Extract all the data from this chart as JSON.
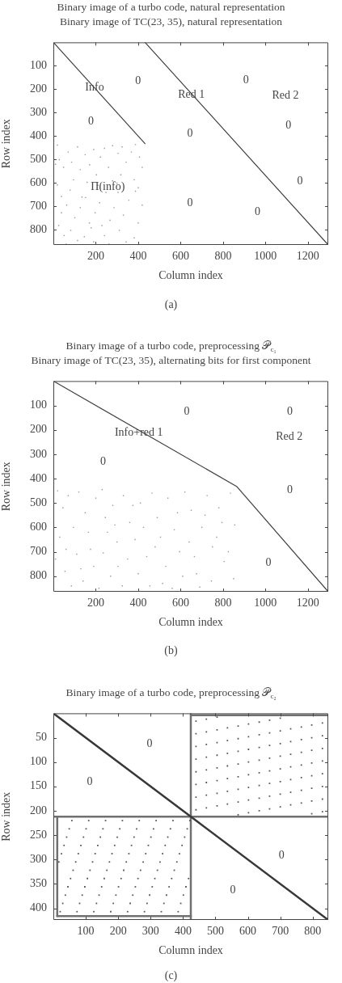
{
  "chart_data": [
    {
      "type": "scatter",
      "title": "Binary image of a turbo code, natural representation",
      "subtitle": "Binary image of TC(23, 35), natural representation",
      "xlabel": "Column index",
      "ylabel": "Row index",
      "xlim": [
        0,
        1296
      ],
      "ylim": [
        864,
        0
      ],
      "xticks": [
        200,
        400,
        600,
        800,
        1000,
        1200
      ],
      "yticks": [
        100,
        200,
        300,
        400,
        500,
        600,
        700,
        800
      ],
      "series": [
        {
          "type": "line",
          "x": [
            0,
            432
          ],
          "values": [
            0,
            432
          ],
          "color": "#404040",
          "marker": "none"
        },
        {
          "type": "line",
          "x": [
            432,
            1296
          ],
          "values": [
            0,
            864
          ],
          "color": "#404040",
          "marker": "none"
        },
        {
          "color": "#9a9a9a",
          "marker": "square",
          "x": [
            19,
            28,
            48,
            70,
            86,
            114,
            127,
            150,
            171,
            190,
            203,
            222,
            241,
            260,
            279,
            305,
            324,
            343,
            368,
            387,
            406,
            419,
            19,
            38,
            63,
            79,
            101,
            127,
            152,
            178,
            197,
            218,
            241,
            267,
            286,
            311,
            330,
            356,
            381,
            400,
            419,
            25,
            51,
            82,
            114,
            146,
            190,
            229,
            343,
            387,
            305,
            95,
            381,
            279,
            159,
            38,
            318,
            248,
            60,
            210,
            400,
            10,
            135,
            262,
            300,
            170
          ],
          "values": [
            438,
            500,
            533,
            468,
            511,
            446,
            543,
            479,
            522,
            457,
            565,
            489,
            452,
            533,
            441,
            473,
            446,
            511,
            468,
            436,
            489,
            533,
            608,
            657,
            694,
            630,
            748,
            705,
            662,
            791,
            727,
            684,
            824,
            759,
            705,
            802,
            737,
            673,
            834,
            770,
            694,
            781,
            824,
            802,
            845,
            829,
            851,
            781,
            851,
            635,
            640,
            586,
            586,
            591,
            597,
            727,
            565,
            640,
            860,
            610,
            620,
            520,
            660,
            860,
            600,
            770
          ]
        }
      ],
      "annotations": [
        "Info",
        "0",
        "0",
        "Red 1",
        "Red 2",
        "0",
        "0",
        "0",
        "Π(info)",
        "0",
        "0",
        "0",
        "(a)"
      ]
    },
    {
      "type": "scatter",
      "title": "Binary image of a turbo code, preprocessing 𝒫$_{c₁}$",
      "subtitle": "Binary image of TC(23, 35), alternating bits for first component",
      "xlabel": "Column index",
      "ylabel": "Row index",
      "xlim": [
        0,
        1296
      ],
      "ylim": [
        864,
        0
      ],
      "xticks": [
        200,
        400,
        600,
        800,
        1000,
        1200
      ],
      "yticks": [
        100,
        200,
        300,
        400,
        500,
        600,
        700,
        800
      ],
      "series": [
        {
          "type": "line",
          "x": [
            0,
            864,
            1296
          ],
          "values": [
            0,
            432,
            864
          ],
          "color": "#404040",
          "marker": "none"
        },
        {
          "color": "#9a9a9a",
          "marker": "square",
          "x": [
            20,
            45,
            70,
            95,
            120,
            150,
            175,
            200,
            230,
            255,
            280,
            305,
            330,
            360,
            385,
            410,
            440,
            465,
            490,
            515,
            540,
            570,
            595,
            620,
            650,
            675,
            700,
            725,
            750,
            780,
            805,
            835,
            855,
            30,
            55,
            85,
            110,
            140,
            165,
            190,
            215,
            245,
            270,
            300,
            325,
            350,
            375,
            400,
            425,
            455,
            480,
            505,
            530,
            560,
            585,
            610,
            640,
            665,
            690,
            715,
            745,
            770,
            795,
            825,
            850,
            10,
            60,
            130,
            235,
            290
          ],
          "values": [
            450,
            520,
            470,
            600,
            455,
            540,
            690,
            480,
            445,
            620,
            510,
            760,
            470,
            580,
            650,
            500,
            720,
            460,
            560,
            830,
            480,
            610,
            700,
            455,
            530,
            790,
            600,
            470,
            680,
            520,
            740,
            460,
            590,
            640,
            780,
            840,
            710,
            820,
            620,
            760,
            850,
            560,
            800,
            660,
            840,
            730,
            510,
            790,
            600,
            840,
            680,
            640,
            760,
            850,
            540,
            800,
            660,
            720,
            845,
            550,
            820,
            640,
            580,
            700,
            810,
            730,
            690,
            770,
            705,
            590
          ]
        }
      ],
      "annotations": [
        "0",
        "0",
        "Info+red 1",
        "Red 2",
        "0",
        "0",
        "0",
        "(b)"
      ]
    },
    {
      "type": "scatter",
      "title": "Binary image of a turbo code, preprocessing 𝒫$_{c₂}$",
      "xlabel": "Column index",
      "ylabel": "Row index",
      "xlim": [
        0,
        848
      ],
      "ylim": [
        424,
        0
      ],
      "xticks": [
        100,
        200,
        300,
        400,
        500,
        600,
        700,
        800
      ],
      "yticks": [
        50,
        100,
        150,
        200,
        250,
        300,
        350,
        400
      ],
      "series": [
        {
          "type": "line",
          "x": [
            0,
            848
          ],
          "values": [
            0,
            424
          ],
          "color": "#383838",
          "marker": "none"
        },
        {
          "type": "line",
          "x": [
            424,
            848
          ],
          "values": [
            4,
            4
          ],
          "color": "#707070",
          "marker": "none"
        },
        {
          "type": "line",
          "x": [
            12,
            424
          ],
          "values": [
            416,
            416
          ],
          "color": "#707070",
          "marker": "none"
        },
        {
          "type": "line",
          "x": [
            12,
            12
          ],
          "values": [
            212,
            416
          ],
          "color": "#707070",
          "marker": "none"
        },
        {
          "color": "#555555",
          "marker": "square",
          "x": [
            440,
            472,
            505,
            440,
            472,
            505,
            537,
            570,
            602,
            635,
            667,
            700,
            440,
            472,
            505,
            537,
            570,
            602,
            635,
            667,
            700,
            732,
            765,
            797,
            830,
            440,
            472,
            505,
            537,
            570,
            602,
            635,
            667,
            700,
            732,
            765,
            797,
            830,
            440,
            472,
            505,
            537,
            570,
            602,
            635,
            667,
            700,
            732,
            765,
            797,
            830,
            440,
            472,
            505,
            537,
            570,
            602,
            635,
            667,
            700,
            732,
            765,
            797,
            830,
            440,
            472,
            505,
            537,
            570,
            602,
            635,
            667,
            700,
            732,
            765,
            797,
            830,
            440,
            472,
            505,
            537,
            570,
            602,
            635,
            667,
            700,
            732,
            765,
            797,
            830,
            570,
            602,
            635,
            667,
            700,
            732,
            765,
            797,
            830,
            797,
            830
          ],
          "values": [
            16,
            12,
            8,
            42,
            38,
            34,
            30,
            26,
            22,
            18,
            14,
            10,
            68,
            64,
            60,
            56,
            52,
            48,
            44,
            40,
            36,
            32,
            28,
            24,
            20,
            94,
            90,
            86,
            82,
            78,
            74,
            70,
            66,
            62,
            58,
            54,
            50,
            46,
            120,
            116,
            112,
            108,
            104,
            100,
            96,
            92,
            88,
            84,
            80,
            76,
            72,
            146,
            142,
            138,
            134,
            130,
            126,
            122,
            118,
            114,
            110,
            106,
            102,
            98,
            172,
            168,
            164,
            160,
            156,
            152,
            148,
            144,
            140,
            136,
            132,
            128,
            124,
            198,
            194,
            190,
            186,
            182,
            178,
            174,
            170,
            166,
            162,
            158,
            154,
            150,
            208,
            204,
            200,
            196,
            192,
            188,
            184,
            180,
            176,
            206,
            202
          ]
        },
        {
          "color": "#555555",
          "marker": "square",
          "x": [
            57,
            49,
            41,
            33,
            25,
            17,
            109,
            101,
            93,
            85,
            77,
            69,
            61,
            53,
            45,
            37,
            29,
            21,
            161,
            153,
            145,
            137,
            129,
            121,
            113,
            105,
            97,
            89,
            81,
            73,
            213,
            205,
            197,
            189,
            181,
            173,
            165,
            157,
            149,
            141,
            133,
            125,
            265,
            257,
            249,
            241,
            233,
            225,
            217,
            209,
            201,
            193,
            185,
            177,
            317,
            309,
            301,
            293,
            285,
            277,
            269,
            261,
            253,
            245,
            237,
            229,
            369,
            361,
            353,
            345,
            337,
            329,
            321,
            313,
            305,
            297,
            289,
            281,
            421,
            413,
            405,
            397,
            389,
            381,
            373,
            365,
            357,
            349,
            341,
            333,
            417,
            409,
            401,
            393,
            385
          ],
          "values": [
            220,
            237,
            254,
            271,
            288,
            305,
            220,
            237,
            254,
            271,
            288,
            305,
            322,
            339,
            356,
            373,
            390,
            407,
            220,
            237,
            254,
            271,
            288,
            305,
            322,
            339,
            356,
            373,
            390,
            407,
            220,
            237,
            254,
            271,
            288,
            305,
            322,
            339,
            356,
            373,
            390,
            407,
            220,
            237,
            254,
            271,
            288,
            305,
            322,
            339,
            356,
            373,
            390,
            407,
            220,
            237,
            254,
            271,
            288,
            305,
            322,
            339,
            356,
            373,
            390,
            407,
            220,
            237,
            254,
            271,
            288,
            305,
            322,
            339,
            356,
            373,
            390,
            407,
            220,
            237,
            254,
            271,
            288,
            305,
            322,
            339,
            356,
            373,
            390,
            407,
            339,
            356,
            373,
            390,
            407
          ]
        }
      ],
      "ref_lines": [
        {
          "axis": "x",
          "value": 424,
          "color": "#707070"
        },
        {
          "axis": "y",
          "value": 212,
          "color": "#707070"
        }
      ],
      "annotations": [
        "0",
        "0",
        "0",
        "0",
        "(c)"
      ]
    }
  ]
}
